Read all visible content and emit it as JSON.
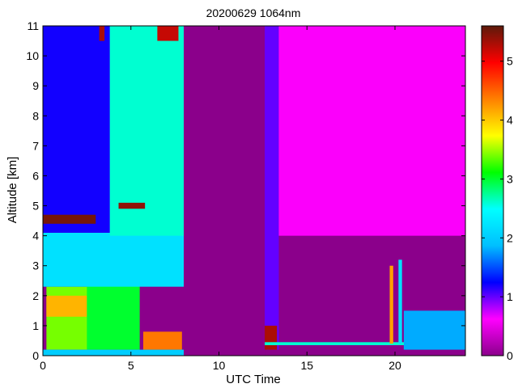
{
  "chart_data": {
    "type": "heatmap",
    "title": "20200629 1064nm",
    "xlabel": "UTC Time",
    "ylabel": "Altitude [km]",
    "xlim": [
      0,
      24
    ],
    "ylim": [
      0,
      11
    ],
    "x_ticks": [
      "0",
      "5",
      "10",
      "15",
      "20"
    ],
    "y_ticks": [
      "0",
      "1",
      "2",
      "3",
      "4",
      "5",
      "6",
      "7",
      "8",
      "9",
      "10",
      "11"
    ],
    "colorbar": {
      "range": [
        0,
        5.6
      ],
      "ticks": [
        "0",
        "1",
        "2",
        "3",
        "4",
        "5"
      ],
      "colormap": [
        "#8b008b",
        "#ff00ff",
        "#0000ff",
        "#00bfff",
        "#00ffff",
        "#00ff00",
        "#ffff00",
        "#ff8000",
        "#ff0000",
        "#5c1a0a"
      ]
    },
    "background_color": "#8b008b",
    "data_gap": [
      8.0,
      12.6
    ],
    "regions": [
      {
        "x": [
          0.2,
          3.6
        ],
        "y": [
          0.2,
          2.3
        ],
        "value": 3.4
      },
      {
        "x": [
          0.2,
          2.5
        ],
        "y": [
          1.3,
          2.0
        ],
        "value": 4.1
      },
      {
        "x": [
          2.5,
          5.5
        ],
        "y": [
          0.2,
          2.6
        ],
        "value": 3.0
      },
      {
        "x": [
          0.0,
          8.0
        ],
        "y": [
          2.3,
          4.1
        ],
        "value": 2.2
      },
      {
        "x": [
          0.0,
          4.0
        ],
        "y": [
          4.1,
          11.0
        ],
        "value": 1.2
      },
      {
        "x": [
          3.8,
          8.0
        ],
        "y": [
          4.0,
          11.0
        ],
        "value": 2.6
      },
      {
        "x": [
          0.0,
          3.0
        ],
        "y": [
          4.4,
          4.7
        ],
        "value": 5.5
      },
      {
        "x": [
          4.3,
          5.8
        ],
        "y": [
          4.9,
          5.1
        ],
        "value": 5.4
      },
      {
        "x": [
          3.2,
          3.5
        ],
        "y": [
          10.5,
          11.0
        ],
        "value": 5.3
      },
      {
        "x": [
          6.5,
          7.7
        ],
        "y": [
          10.5,
          11.0
        ],
        "value": 5.2
      },
      {
        "x": [
          5.7,
          7.9
        ],
        "y": [
          0.2,
          0.8
        ],
        "value": 4.4
      },
      {
        "x": [
          0.0,
          8.0
        ],
        "y": [
          0.0,
          0.2
        ],
        "value": 2.0
      },
      {
        "x": [
          12.6,
          13.4
        ],
        "y": [
          0.2,
          11.0
        ],
        "value": 1.0
      },
      {
        "x": [
          13.4,
          24.0
        ],
        "y": [
          4.0,
          11.0
        ],
        "value": 0.6
      },
      {
        "x": [
          12.6,
          13.3
        ],
        "y": [
          0.2,
          1.0
        ],
        "value": 5.3
      },
      {
        "x": [
          12.6,
          24.0
        ],
        "y": [
          0.35,
          0.45
        ],
        "value": 2.6
      },
      {
        "x": [
          19.7,
          19.9
        ],
        "y": [
          0.4,
          3.0
        ],
        "value": 4.2
      },
      {
        "x": [
          20.2,
          20.4
        ],
        "y": [
          0.4,
          3.2
        ],
        "value": 2.2
      },
      {
        "x": [
          20.5,
          24.0
        ],
        "y": [
          0.2,
          1.5
        ],
        "value": 1.8
      }
    ]
  }
}
